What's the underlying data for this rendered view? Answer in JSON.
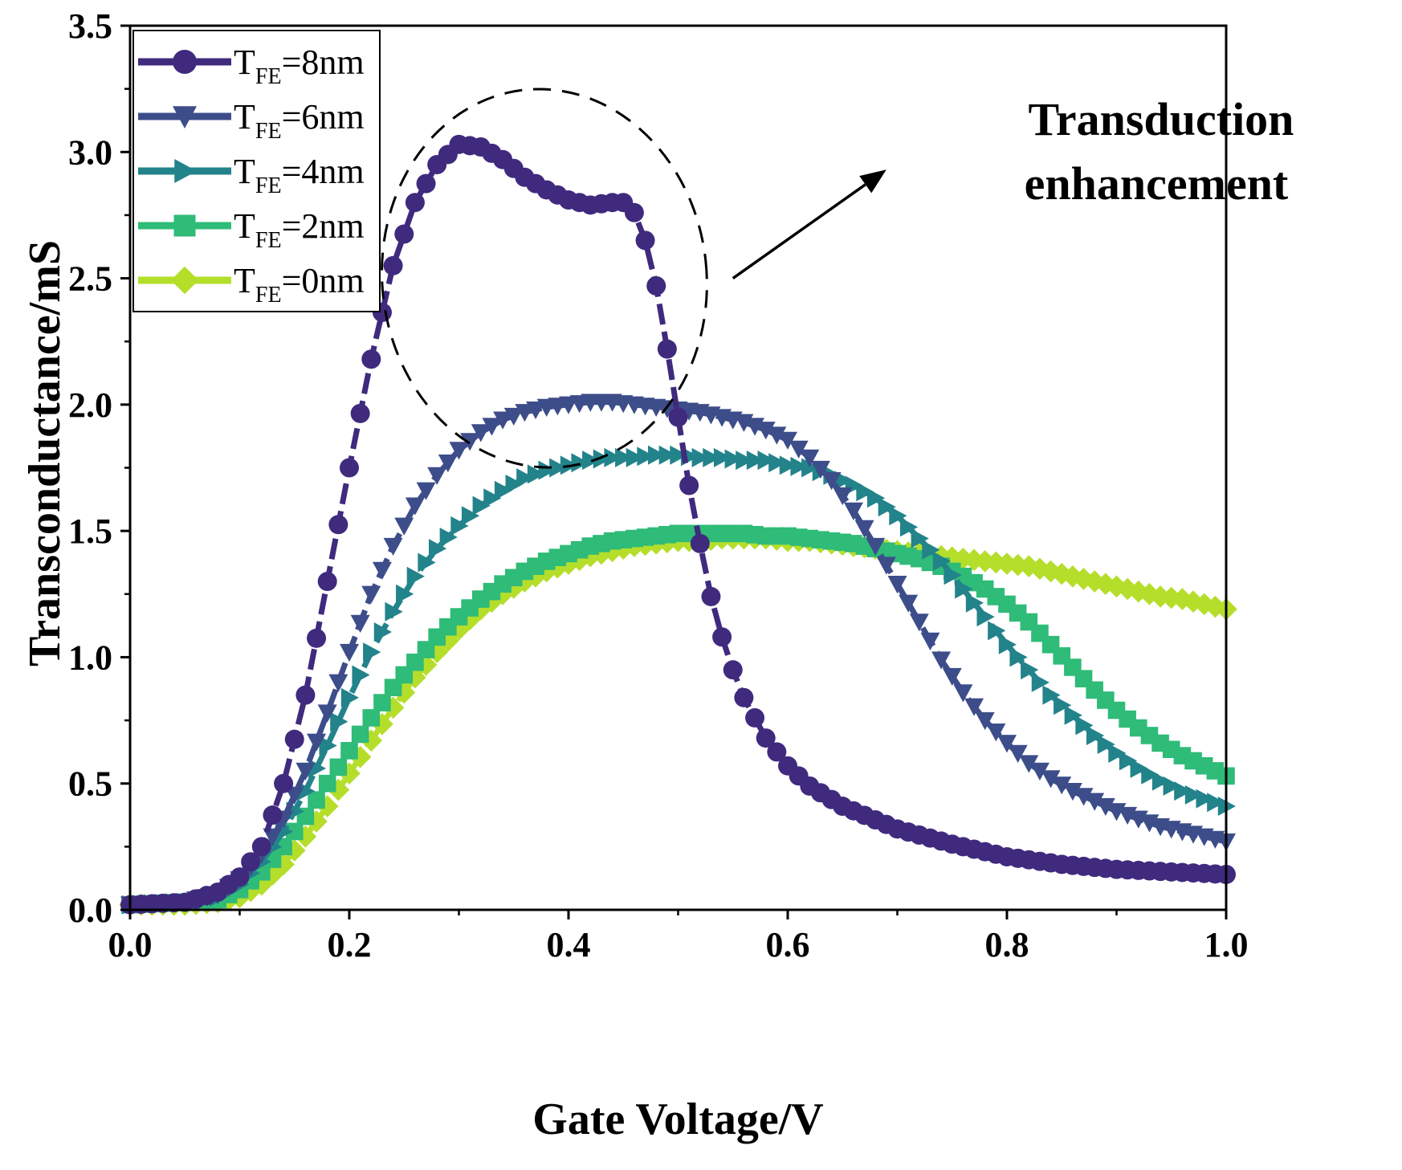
{
  "chart_data": {
    "type": "line",
    "title": "",
    "xlabel": "Gate Voltage/V",
    "ylabel": "Transconductance/mS",
    "xlim": [
      0.0,
      1.0
    ],
    "ylim": [
      0.0,
      3.5
    ],
    "x_ticks": [
      "0.0",
      "0.2",
      "0.4",
      "0.6",
      "0.8",
      "1.0"
    ],
    "y_ticks": [
      "0.0",
      "0.5",
      "1.0",
      "1.5",
      "2.0",
      "2.5",
      "3.0",
      "3.5"
    ],
    "grid": false,
    "legend_position": "top-left",
    "series": [
      {
        "name": "TFE=8nm",
        "label_main": "T",
        "label_sub": "FE",
        "label_rest": "=8nm",
        "color": "#3f2a7e",
        "marker": "circle",
        "points": [
          [
            0,
            0.02
          ],
          [
            0.05,
            0.03
          ],
          [
            0.08,
            0.07
          ],
          [
            0.1,
            0.13
          ],
          [
            0.12,
            0.25
          ],
          [
            0.14,
            0.5
          ],
          [
            0.16,
            0.85
          ],
          [
            0.18,
            1.3
          ],
          [
            0.2,
            1.75
          ],
          [
            0.22,
            2.18
          ],
          [
            0.24,
            2.55
          ],
          [
            0.26,
            2.8
          ],
          [
            0.28,
            2.95
          ],
          [
            0.3,
            3.03
          ],
          [
            0.32,
            3.02
          ],
          [
            0.34,
            2.97
          ],
          [
            0.36,
            2.9
          ],
          [
            0.38,
            2.85
          ],
          [
            0.4,
            2.81
          ],
          [
            0.42,
            2.79
          ],
          [
            0.44,
            2.8
          ],
          [
            0.45,
            2.8
          ],
          [
            0.46,
            2.76
          ],
          [
            0.47,
            2.65
          ],
          [
            0.48,
            2.47
          ],
          [
            0.49,
            2.22
          ],
          [
            0.5,
            1.95
          ],
          [
            0.51,
            1.68
          ],
          [
            0.52,
            1.45
          ],
          [
            0.53,
            1.24
          ],
          [
            0.54,
            1.08
          ],
          [
            0.55,
            0.95
          ],
          [
            0.56,
            0.84
          ],
          [
            0.58,
            0.68
          ],
          [
            0.6,
            0.57
          ],
          [
            0.62,
            0.49
          ],
          [
            0.65,
            0.41
          ],
          [
            0.7,
            0.32
          ],
          [
            0.75,
            0.26
          ],
          [
            0.8,
            0.21
          ],
          [
            0.85,
            0.18
          ],
          [
            0.9,
            0.16
          ],
          [
            0.95,
            0.15
          ],
          [
            1.0,
            0.14
          ]
        ]
      },
      {
        "name": "TFE=6nm",
        "label_main": "T",
        "label_sub": "FE",
        "label_rest": "=6nm",
        "color": "#3d4d8a",
        "marker": "triangle-down",
        "points": [
          [
            0,
            0.02
          ],
          [
            0.05,
            0.03
          ],
          [
            0.08,
            0.06
          ],
          [
            0.1,
            0.12
          ],
          [
            0.12,
            0.22
          ],
          [
            0.14,
            0.36
          ],
          [
            0.16,
            0.55
          ],
          [
            0.18,
            0.78
          ],
          [
            0.2,
            1.02
          ],
          [
            0.22,
            1.25
          ],
          [
            0.24,
            1.44
          ],
          [
            0.26,
            1.6
          ],
          [
            0.28,
            1.72
          ],
          [
            0.3,
            1.82
          ],
          [
            0.32,
            1.89
          ],
          [
            0.34,
            1.94
          ],
          [
            0.36,
            1.97
          ],
          [
            0.38,
            1.99
          ],
          [
            0.4,
            2.0
          ],
          [
            0.42,
            2.01
          ],
          [
            0.44,
            2.01
          ],
          [
            0.46,
            2.0
          ],
          [
            0.48,
            1.99
          ],
          [
            0.5,
            1.98
          ],
          [
            0.52,
            1.97
          ],
          [
            0.54,
            1.95
          ],
          [
            0.56,
            1.93
          ],
          [
            0.58,
            1.9
          ],
          [
            0.6,
            1.86
          ],
          [
            0.62,
            1.79
          ],
          [
            0.64,
            1.7
          ],
          [
            0.66,
            1.58
          ],
          [
            0.68,
            1.44
          ],
          [
            0.7,
            1.29
          ],
          [
            0.72,
            1.14
          ],
          [
            0.74,
            0.99
          ],
          [
            0.76,
            0.86
          ],
          [
            0.78,
            0.75
          ],
          [
            0.8,
            0.66
          ],
          [
            0.82,
            0.58
          ],
          [
            0.84,
            0.52
          ],
          [
            0.86,
            0.47
          ],
          [
            0.88,
            0.43
          ],
          [
            0.9,
            0.39
          ],
          [
            0.92,
            0.36
          ],
          [
            0.94,
            0.33
          ],
          [
            0.96,
            0.31
          ],
          [
            0.98,
            0.29
          ],
          [
            1.0,
            0.27
          ]
        ]
      },
      {
        "name": "TFE=4nm",
        "label_main": "T",
        "label_sub": "FE",
        "label_rest": "=4nm",
        "color": "#23838b",
        "marker": "triangle-right",
        "points": [
          [
            0,
            0.02
          ],
          [
            0.05,
            0.03
          ],
          [
            0.08,
            0.05
          ],
          [
            0.1,
            0.1
          ],
          [
            0.12,
            0.19
          ],
          [
            0.14,
            0.31
          ],
          [
            0.16,
            0.47
          ],
          [
            0.18,
            0.65
          ],
          [
            0.2,
            0.84
          ],
          [
            0.22,
            1.02
          ],
          [
            0.24,
            1.18
          ],
          [
            0.26,
            1.32
          ],
          [
            0.28,
            1.43
          ],
          [
            0.3,
            1.52
          ],
          [
            0.32,
            1.6
          ],
          [
            0.34,
            1.66
          ],
          [
            0.36,
            1.71
          ],
          [
            0.38,
            1.74
          ],
          [
            0.4,
            1.76
          ],
          [
            0.42,
            1.78
          ],
          [
            0.44,
            1.79
          ],
          [
            0.46,
            1.79
          ],
          [
            0.48,
            1.8
          ],
          [
            0.5,
            1.8
          ],
          [
            0.52,
            1.79
          ],
          [
            0.54,
            1.79
          ],
          [
            0.56,
            1.78
          ],
          [
            0.58,
            1.78
          ],
          [
            0.6,
            1.76
          ],
          [
            0.62,
            1.75
          ],
          [
            0.64,
            1.72
          ],
          [
            0.66,
            1.68
          ],
          [
            0.68,
            1.63
          ],
          [
            0.7,
            1.56
          ],
          [
            0.72,
            1.47
          ],
          [
            0.74,
            1.38
          ],
          [
            0.76,
            1.27
          ],
          [
            0.78,
            1.16
          ],
          [
            0.8,
            1.05
          ],
          [
            0.82,
            0.95
          ],
          [
            0.84,
            0.85
          ],
          [
            0.86,
            0.77
          ],
          [
            0.88,
            0.69
          ],
          [
            0.9,
            0.62
          ],
          [
            0.92,
            0.56
          ],
          [
            0.94,
            0.51
          ],
          [
            0.96,
            0.47
          ],
          [
            0.98,
            0.44
          ],
          [
            1.0,
            0.41
          ]
        ]
      },
      {
        "name": "TFE=2nm",
        "label_main": "T",
        "label_sub": "FE",
        "label_rest": "=2nm",
        "color": "#2fbb78",
        "marker": "square",
        "points": [
          [
            0,
            0.02
          ],
          [
            0.05,
            0.03
          ],
          [
            0.08,
            0.04
          ],
          [
            0.1,
            0.08
          ],
          [
            0.12,
            0.15
          ],
          [
            0.14,
            0.25
          ],
          [
            0.16,
            0.37
          ],
          [
            0.18,
            0.5
          ],
          [
            0.2,
            0.63
          ],
          [
            0.22,
            0.76
          ],
          [
            0.24,
            0.88
          ],
          [
            0.26,
            0.98
          ],
          [
            0.28,
            1.08
          ],
          [
            0.3,
            1.16
          ],
          [
            0.32,
            1.23
          ],
          [
            0.34,
            1.29
          ],
          [
            0.36,
            1.34
          ],
          [
            0.38,
            1.38
          ],
          [
            0.4,
            1.41
          ],
          [
            0.42,
            1.44
          ],
          [
            0.44,
            1.46
          ],
          [
            0.46,
            1.47
          ],
          [
            0.48,
            1.48
          ],
          [
            0.5,
            1.49
          ],
          [
            0.52,
            1.49
          ],
          [
            0.54,
            1.49
          ],
          [
            0.56,
            1.49
          ],
          [
            0.58,
            1.48
          ],
          [
            0.6,
            1.48
          ],
          [
            0.62,
            1.47
          ],
          [
            0.64,
            1.46
          ],
          [
            0.66,
            1.45
          ],
          [
            0.68,
            1.43
          ],
          [
            0.7,
            1.41
          ],
          [
            0.72,
            1.39
          ],
          [
            0.74,
            1.36
          ],
          [
            0.76,
            1.32
          ],
          [
            0.78,
            1.27
          ],
          [
            0.8,
            1.21
          ],
          [
            0.82,
            1.14
          ],
          [
            0.84,
            1.05
          ],
          [
            0.86,
            0.96
          ],
          [
            0.88,
            0.87
          ],
          [
            0.9,
            0.79
          ],
          [
            0.92,
            0.72
          ],
          [
            0.94,
            0.66
          ],
          [
            0.96,
            0.61
          ],
          [
            0.98,
            0.57
          ],
          [
            1.0,
            0.53
          ]
        ]
      },
      {
        "name": "TFE=0nm",
        "label_main": "T",
        "label_sub": "FE",
        "label_rest": "=0nm",
        "color": "#b5de2b",
        "marker": "diamond",
        "points": [
          [
            0,
            0.02
          ],
          [
            0.05,
            0.02
          ],
          [
            0.08,
            0.03
          ],
          [
            0.1,
            0.05
          ],
          [
            0.12,
            0.1
          ],
          [
            0.14,
            0.18
          ],
          [
            0.16,
            0.29
          ],
          [
            0.18,
            0.41
          ],
          [
            0.2,
            0.54
          ],
          [
            0.22,
            0.67
          ],
          [
            0.24,
            0.8
          ],
          [
            0.26,
            0.92
          ],
          [
            0.28,
            1.02
          ],
          [
            0.3,
            1.11
          ],
          [
            0.32,
            1.19
          ],
          [
            0.34,
            1.25
          ],
          [
            0.36,
            1.3
          ],
          [
            0.38,
            1.34
          ],
          [
            0.4,
            1.37
          ],
          [
            0.42,
            1.4
          ],
          [
            0.44,
            1.42
          ],
          [
            0.46,
            1.44
          ],
          [
            0.48,
            1.45
          ],
          [
            0.5,
            1.46
          ],
          [
            0.52,
            1.46
          ],
          [
            0.54,
            1.47
          ],
          [
            0.56,
            1.47
          ],
          [
            0.58,
            1.47
          ],
          [
            0.6,
            1.46
          ],
          [
            0.62,
            1.46
          ],
          [
            0.64,
            1.45
          ],
          [
            0.66,
            1.44
          ],
          [
            0.68,
            1.43
          ],
          [
            0.7,
            1.42
          ],
          [
            0.72,
            1.41
          ],
          [
            0.74,
            1.4
          ],
          [
            0.76,
            1.39
          ],
          [
            0.78,
            1.38
          ],
          [
            0.8,
            1.37
          ],
          [
            0.82,
            1.36
          ],
          [
            0.84,
            1.34
          ],
          [
            0.86,
            1.32
          ],
          [
            0.88,
            1.3
          ],
          [
            0.9,
            1.28
          ],
          [
            0.92,
            1.26
          ],
          [
            0.94,
            1.24
          ],
          [
            0.96,
            1.23
          ],
          [
            0.98,
            1.21
          ],
          [
            1.0,
            1.19
          ]
        ]
      }
    ],
    "annotation": {
      "line1": "Transduction",
      "line2": "enhancement",
      "ellipse_center_x": 0.378,
      "ellipse_center_y": 2.5,
      "ellipse_radius_x": 0.148,
      "ellipse_radius_y": 0.75,
      "arrow_from": [
        0.55,
        2.5
      ],
      "arrow_to": [
        0.69,
        2.93
      ]
    }
  }
}
